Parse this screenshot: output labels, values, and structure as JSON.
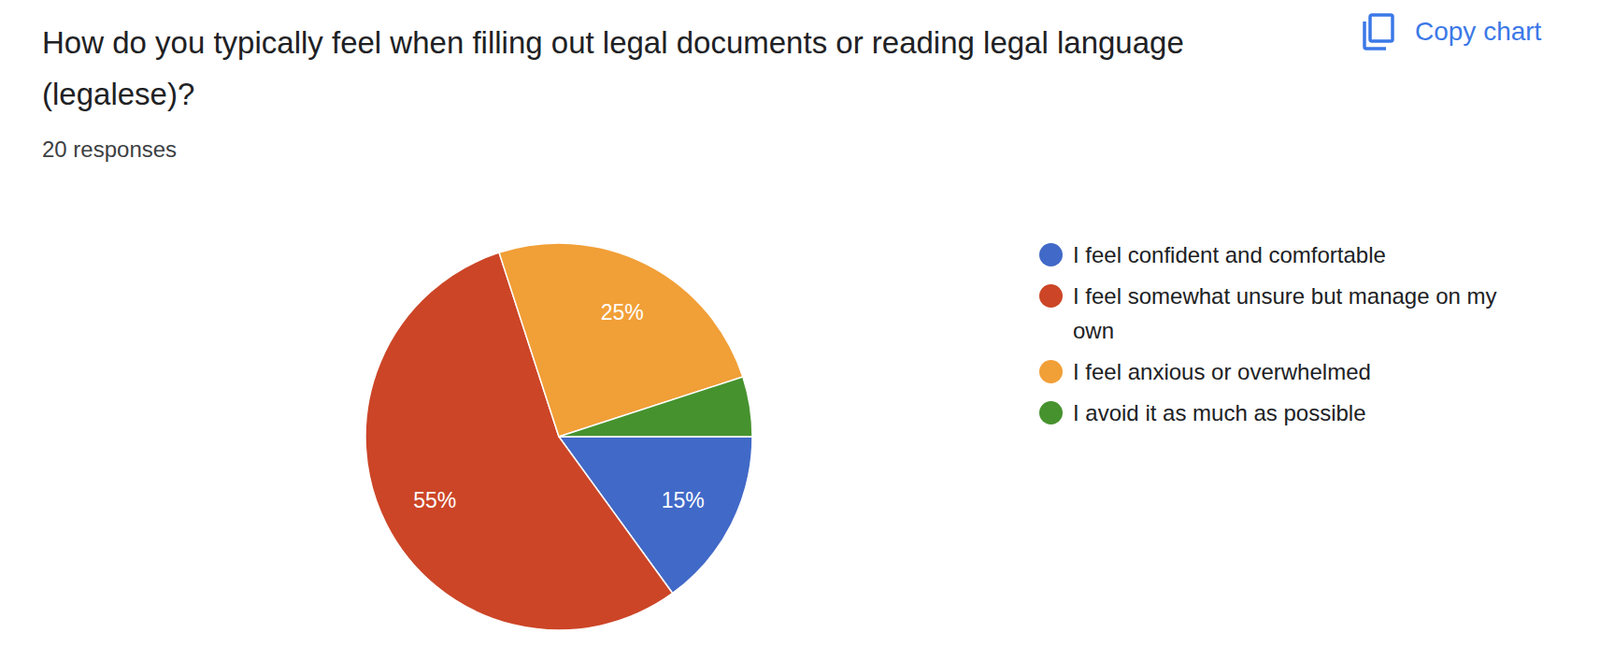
{
  "chart_data": {
    "type": "pie",
    "title": "How do you typically feel when filling out legal documents or reading legal language (legalese)?",
    "subtitle": "20 responses",
    "copy_button": "Copy chart",
    "categories": [
      "I feel confident and comfortable",
      "I feel somewhat unsure but manage on my own",
      "I feel anxious or overwhelmed",
      "I avoid it as much as possible"
    ],
    "values": [
      15,
      55,
      25,
      5
    ],
    "value_labels": [
      "15%",
      "55%",
      "25%",
      null
    ],
    "colors": [
      "#4169c8",
      "#cc4527",
      "#f19f37",
      "#46922e"
    ],
    "data_labels": true,
    "legend": "right"
  }
}
